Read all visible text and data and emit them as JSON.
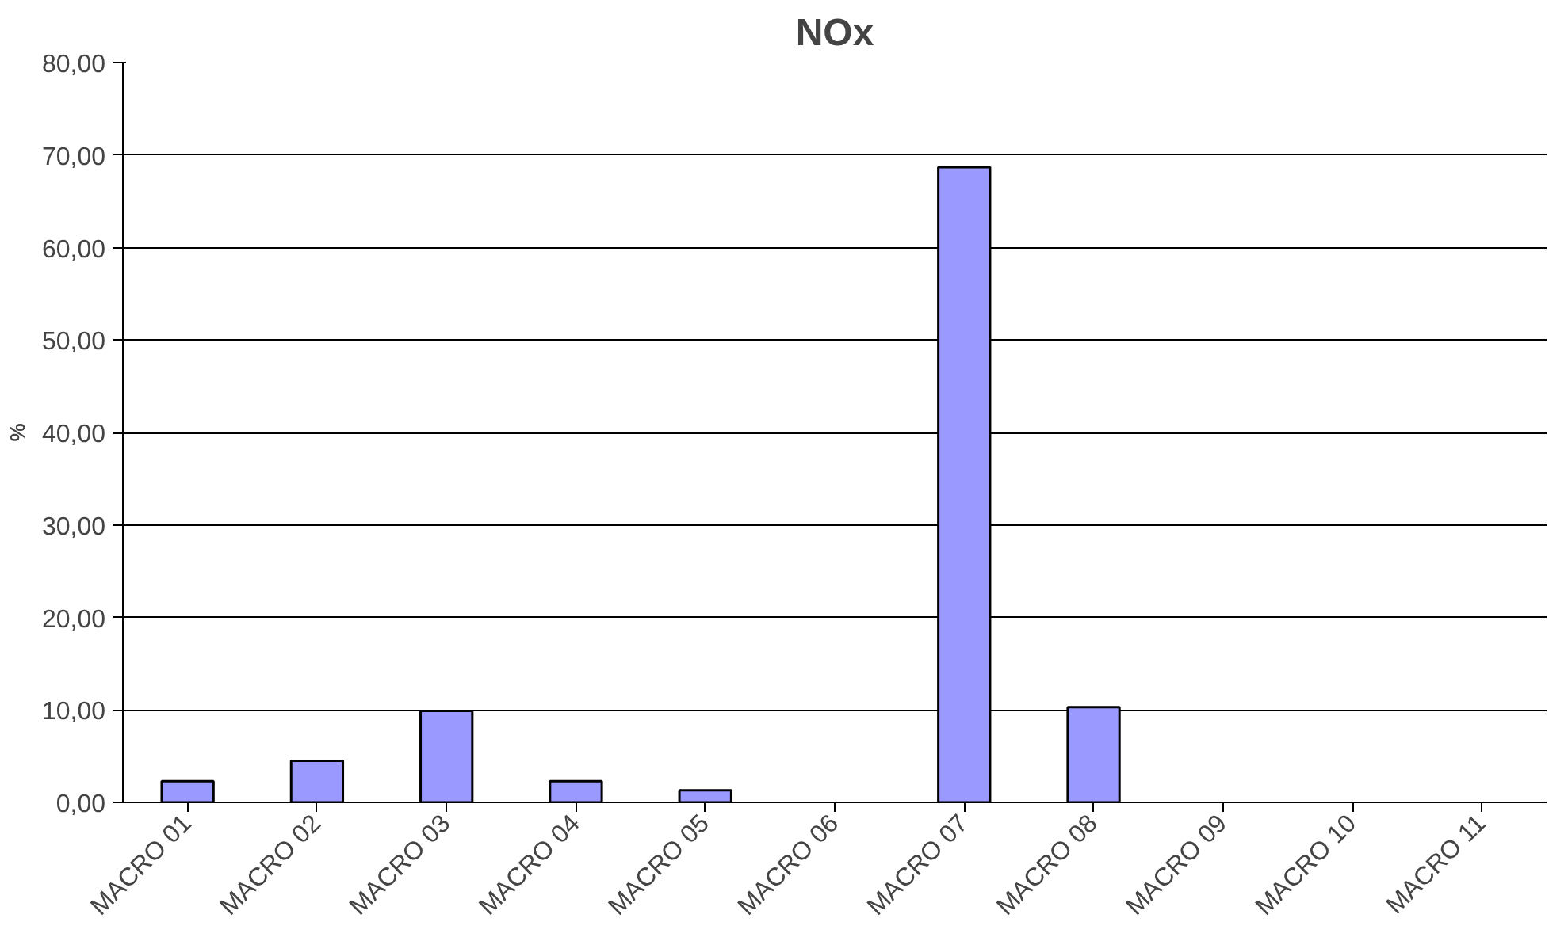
{
  "chart_data": {
    "type": "bar",
    "title": "NOx",
    "ylabel": "%",
    "categories": [
      "MACRO 01",
      "MACRO 02",
      "MACRO 03",
      "MACRO 04",
      "MACRO 05",
      "MACRO 06",
      "MACRO 07",
      "MACRO 08",
      "MACRO 09",
      "MACRO 10",
      "MACRO 11"
    ],
    "values": [
      2.3,
      4.5,
      9.9,
      2.3,
      1.3,
      0,
      68.7,
      10.3,
      0,
      0,
      0
    ],
    "color": "#9999ff",
    "ylim": [
      0,
      80
    ],
    "yticks": [
      {
        "value": 0,
        "label": "0,00"
      },
      {
        "value": 10,
        "label": "10,00"
      },
      {
        "value": 20,
        "label": "20,00"
      },
      {
        "value": 30,
        "label": "30,00"
      },
      {
        "value": 40,
        "label": "40,00"
      },
      {
        "value": 50,
        "label": "50,00"
      },
      {
        "value": 60,
        "label": "60,00"
      },
      {
        "value": 70,
        "label": "70,00"
      },
      {
        "value": 80,
        "label": "80,00"
      }
    ],
    "grid": "y"
  }
}
